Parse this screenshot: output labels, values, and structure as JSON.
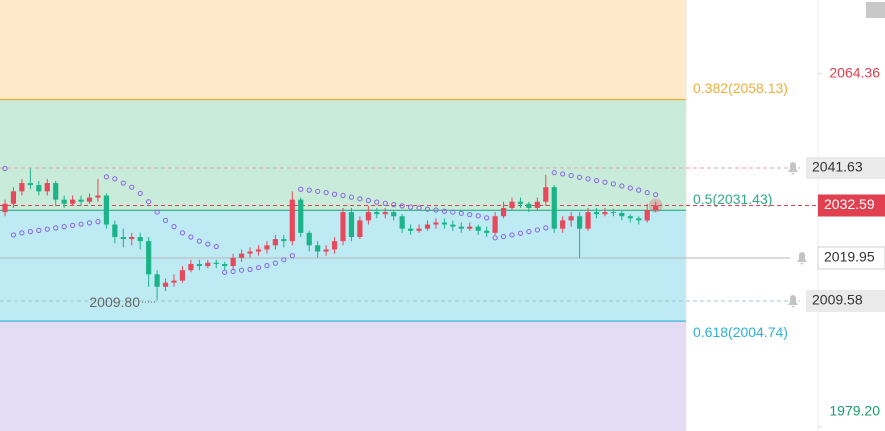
{
  "chart_data": {
    "type": "candlestick",
    "open": [
      2031,
      2033,
      2036,
      2038,
      2037.5,
      2036,
      2038,
      2034,
      2033,
      2034,
      2033.5,
      2034.5,
      2035,
      2028,
      2025,
      2024.5,
      2025,
      2024,
      2016,
      2013,
      2014,
      2014.5,
      2017,
      2018.5,
      2018,
      2018.8,
      2018.5,
      2018,
      2020,
      2021,
      2021.5,
      2022,
      2023,
      2024.5,
      2024,
      2034,
      2026,
      2023,
      2021.5,
      2022,
      2024,
      2031,
      2025,
      2029,
      2031,
      2030.5,
      2031,
      2030,
      2027,
      2026.5,
      2027,
      2028,
      2028.5,
      2028,
      2027.5,
      2027,
      2027.5,
      2026.5,
      2026,
      2030,
      2032,
      2033.5,
      2033,
      2032,
      2033.5,
      2037,
      2027,
      2029,
      2030,
      2027,
      2031,
      2030.5,
      2031,
      2030.8,
      2030,
      2029.5,
      2029,
      2031.5
    ],
    "high": [
      2034,
      2037,
      2039,
      2041.5,
      2038.5,
      2039,
      2038.5,
      2035,
      2035,
      2035,
      2035.5,
      2039,
      2035.5,
      2029,
      2027,
      2026,
      2026,
      2025,
      2017,
      2015,
      2016,
      2018,
      2019.5,
      2019.5,
      2019.5,
      2019.5,
      2019,
      2021,
      2022,
      2022.5,
      2023,
      2024,
      2025.5,
      2025.5,
      2036,
      2034.5,
      2026.5,
      2024,
      2023,
      2025,
      2032,
      2032,
      2030,
      2032.5,
      2032,
      2032,
      2031.5,
      2030.5,
      2028,
      2028,
      2029,
      2029.5,
      2029.5,
      2029,
      2028.5,
      2028.5,
      2028,
      2027.5,
      2031,
      2033.5,
      2034.5,
      2034.5,
      2033.5,
      2034.5,
      2040,
      2037.5,
      2030,
      2031,
      2031,
      2032,
      2032,
      2032,
      2031.8,
      2031.5,
      2030.5,
      2030,
      2033,
      2033.5
    ],
    "low": [
      2030,
      2032,
      2035,
      2036.5,
      2035,
      2035,
      2032.5,
      2032,
      2032.5,
      2032.5,
      2033,
      2033.5,
      2027,
      2023.5,
      2022.5,
      2023,
      2022,
      2013,
      2009.8,
      2012,
      2013,
      2014,
      2016.5,
      2017,
      2017.5,
      2017.5,
      2017,
      2017,
      2019,
      2020,
      2020.5,
      2021,
      2022,
      2022.5,
      2023,
      2025,
      2021.5,
      2020,
      2020.5,
      2021,
      2023,
      2024,
      2024.5,
      2028,
      2029.5,
      2029.5,
      2029,
      2026,
      2025.5,
      2026,
      2026.5,
      2027,
      2027,
      2026.5,
      2026,
      2026.5,
      2025.5,
      2025,
      2025.5,
      2029.5,
      2031.5,
      2032,
      2031,
      2031.5,
      2032.5,
      2026,
      2026,
      2027.5,
      2019.9,
      2026.5,
      2029.5,
      2030,
      2030,
      2029,
      2028.5,
      2028,
      2028.5,
      2031
    ],
    "close": [
      2033,
      2036,
      2038,
      2037.5,
      2036,
      2038,
      2034,
      2033,
      2034,
      2033.5,
      2034.5,
      2035,
      2028,
      2025,
      2024.5,
      2025,
      2024,
      2016,
      2013,
      2014,
      2014.5,
      2017,
      2018.5,
      2018,
      2018.8,
      2018.5,
      2018,
      2020,
      2021,
      2021.5,
      2022,
      2023,
      2024.5,
      2024,
      2034,
      2026,
      2023,
      2021.5,
      2022,
      2024,
      2031,
      2025,
      2029,
      2031,
      2030.5,
      2031,
      2030,
      2027,
      2026.5,
      2027,
      2028,
      2028.5,
      2028,
      2027.5,
      2027,
      2027.5,
      2026.5,
      2026,
      2030,
      2032,
      2033.5,
      2033,
      2032,
      2033.5,
      2037,
      2027,
      2029,
      2030,
      2027,
      2031,
      2030.5,
      2031,
      2030.8,
      2030,
      2029.5,
      2029,
      2031.5,
      2032.59
    ],
    "sar": [
      2041.5,
      2025.5,
      2026,
      2026.3,
      2026.6,
      2026.9,
      2027.2,
      2027.5,
      2027.8,
      2028.1,
      2028.4,
      2028.7,
      2039.5,
      2039,
      2038,
      2037,
      2035.5,
      2033.5,
      2031,
      2029,
      2027.5,
      2026,
      2025,
      2024,
      2023.3,
      2022.7,
      2016.5,
      2016.7,
      2017,
      2017.2,
      2017.6,
      2018.1,
      2018.7,
      2019.5,
      2020.5,
      2036.5,
      2036.3,
      2036,
      2035.7,
      2035.3,
      2035,
      2034.6,
      2034.2,
      2033.8,
      2033.4,
      2033.1,
      2032.8,
      2032.5,
      2032.2,
      2032,
      2031.7,
      2031.5,
      2031.2,
      2031,
      2030.7,
      2030.4,
      2030.1,
      2029.6,
      2024.8,
      2025.1,
      2025.5,
      2025.9,
      2026.3,
      2026.7,
      2027.2,
      2040.5,
      2040.2,
      2039.8,
      2039.4,
      2039,
      2038.6,
      2038.2,
      2037.8,
      2037.3,
      2036.8,
      2036.3,
      2035.7,
      2035.2
    ],
    "up_color": "#e5495b",
    "down_color": "#1db388",
    "sar_color": "#8a63e0",
    "ylim": [
      1978.25,
      2082.11
    ],
    "yticks": [
      {
        "value": 2064.36,
        "label": "2064.36",
        "color": "#e0404f"
      },
      {
        "value": 1979.2,
        "label": "1979.20",
        "color": "#1a9a6a"
      }
    ],
    "fib_levels": [
      {
        "value": 2058.13,
        "label": "0.382(2058.13)",
        "color": "#ecaf3a"
      },
      {
        "value": 2031.43,
        "label": "0.5(2031.43)",
        "color": "#2faa84"
      },
      {
        "value": 2004.74,
        "label": "0.618(2004.74)",
        "color": "#2eb0d6"
      }
    ],
    "band_colors": [
      "#fee9c8",
      "#c8ecd9",
      "#beeaf4",
      "#e2dcf5"
    ],
    "price_lines": [
      {
        "value": 2041.63,
        "color": "#e8a6b0",
        "style": "dashed",
        "alert": true
      },
      {
        "value": 2032.59,
        "color": "#e0404f",
        "style": "dashed",
        "alert": false
      },
      {
        "value": 2019.95,
        "color": "#b8b8b8",
        "style": "solid",
        "alert": true
      },
      {
        "value": 2009.58,
        "color": "#9fc8c8",
        "style": "dashed",
        "alert": true
      }
    ],
    "low_annotation": {
      "value": 2009.8,
      "label": "2009.80"
    }
  }
}
